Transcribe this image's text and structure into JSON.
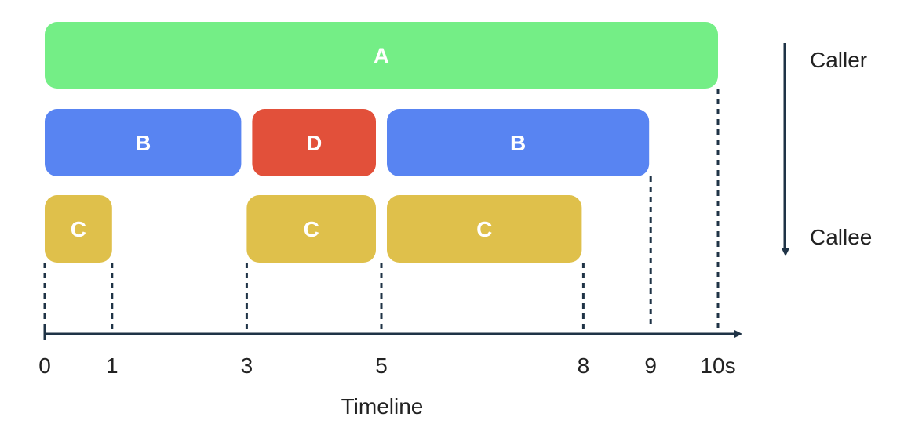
{
  "chart_data": {
    "type": "timeline",
    "unit": "s",
    "xlim": [
      0,
      10
    ],
    "ticks": [
      {
        "value": 0,
        "label": "0"
      },
      {
        "value": 1,
        "label": "1"
      },
      {
        "value": 3,
        "label": "3"
      },
      {
        "value": 5,
        "label": "5"
      },
      {
        "value": 8,
        "label": "8"
      },
      {
        "value": 9,
        "label": "9"
      },
      {
        "value": 10,
        "label": "10s"
      }
    ],
    "axis_title": "Timeline",
    "levels": [
      {
        "name": "caller",
        "spans": [
          {
            "label": "A",
            "start": 0,
            "end": 10,
            "color": "#74ee86"
          }
        ]
      },
      {
        "name": "middle",
        "spans": [
          {
            "label": "B",
            "start": 0,
            "end": 3,
            "color": "#5884f2"
          },
          {
            "label": "D",
            "start": 3,
            "end": 5,
            "color": "#e2503a"
          },
          {
            "label": "B",
            "start": 5,
            "end": 9,
            "color": "#5884f2"
          }
        ]
      },
      {
        "name": "callee",
        "spans": [
          {
            "label": "C",
            "start": 0,
            "end": 1,
            "color": "#dfc04b"
          },
          {
            "label": "C",
            "start": 3,
            "end": 5,
            "color": "#dfc04b"
          },
          {
            "label": "C",
            "start": 5,
            "end": 8,
            "color": "#dfc04b"
          }
        ]
      }
    ],
    "dashed_markers": [
      0,
      1,
      3,
      5,
      8,
      9,
      10
    ]
  },
  "legend": {
    "top_label": "Caller",
    "bottom_label": "Callee"
  },
  "colors": {
    "axis": "#1f3346",
    "text": "#222222"
  }
}
